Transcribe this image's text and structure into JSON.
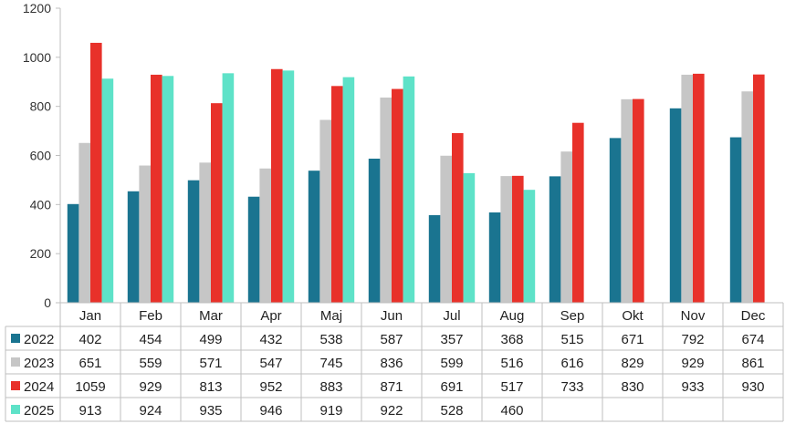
{
  "chart_data": {
    "type": "bar",
    "categories": [
      "Jan",
      "Feb",
      "Mar",
      "Apr",
      "Maj",
      "Jun",
      "Jul",
      "Aug",
      "Sep",
      "Okt",
      "Nov",
      "Dec"
    ],
    "series": [
      {
        "name": "2022",
        "color": "#1a7490",
        "values": [
          402,
          454,
          499,
          432,
          538,
          587,
          357,
          368,
          515,
          671,
          792,
          674
        ]
      },
      {
        "name": "2023",
        "color": "#c6c6c6",
        "values": [
          651,
          559,
          571,
          547,
          745,
          836,
          599,
          516,
          616,
          829,
          929,
          861
        ]
      },
      {
        "name": "2024",
        "color": "#e8312a",
        "values": [
          1059,
          929,
          813,
          952,
          883,
          871,
          691,
          517,
          733,
          830,
          933,
          930
        ]
      },
      {
        "name": "2025",
        "color": "#5ee2c8",
        "values": [
          913,
          924,
          935,
          946,
          919,
          922,
          528,
          460,
          null,
          null,
          null,
          null
        ]
      }
    ],
    "yticks": [
      0,
      200,
      400,
      600,
      800,
      1000,
      1200
    ],
    "ylim": [
      0,
      1200
    ],
    "grid": false,
    "legend": "data-table-left",
    "title": "",
    "xlabel": "",
    "ylabel": ""
  }
}
